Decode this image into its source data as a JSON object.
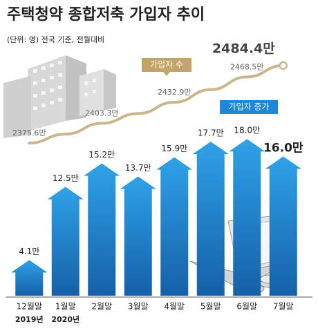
{
  "chart_data": {
    "type": "bar",
    "title": "주택청약 종합저축 가입자 추이",
    "subtitle": "(단위: 명) 전국 기준, 전월대비",
    "categories": [
      "12월말",
      "1월말",
      "2월말",
      "3월말",
      "4월말",
      "5월말",
      "6월말",
      "7월말"
    ],
    "category_sublabels": [
      "2019년",
      "2020년",
      null,
      null,
      null,
      null,
      null,
      null
    ],
    "series": [
      {
        "name": "가입자 증가",
        "type": "bar",
        "color": "#1e88d6",
        "values": [
          4.1,
          12.5,
          15.2,
          13.7,
          15.9,
          17.7,
          18.0,
          16.0
        ],
        "value_labels": [
          "4.1만",
          "12.5만",
          "15.2만",
          "13.7만",
          "15.9만",
          "17.7만",
          "18.0만",
          "16.0만"
        ]
      },
      {
        "name": "가입자 수",
        "type": "line",
        "color": "#cbb68c",
        "values": [
          2375.6,
          2388.1,
          2403.3,
          2417.0,
          2432.9,
          2450.6,
          2468.5,
          2484.4
        ],
        "value_labels": [
          "2375.6만",
          null,
          "2403.3만",
          null,
          "2432.9만",
          null,
          "2468.5만",
          "2484.4만"
        ]
      }
    ]
  }
}
